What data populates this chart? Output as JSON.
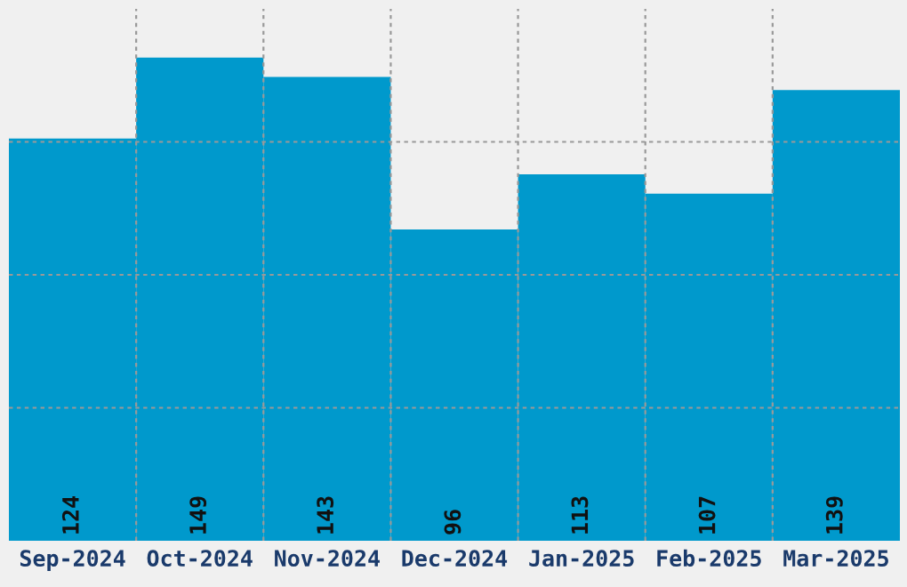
{
  "chart_data": {
    "type": "bar",
    "categories": [
      "Sep-2024",
      "Oct-2024",
      "Nov-2024",
      "Dec-2024",
      "Jan-2025",
      "Feb-2025",
      "Mar-2025"
    ],
    "values": [
      124,
      149,
      143,
      96,
      113,
      107,
      139
    ],
    "color": "#0099cc",
    "ylim": [
      0,
      164
    ],
    "yticks": [
      {
        "value": 41,
        "label": null
      },
      {
        "value": 82,
        "label": null
      },
      {
        "value": 123,
        "label": null
      }
    ],
    "grid": true,
    "data_labels": true,
    "tick_labels": "x"
  }
}
